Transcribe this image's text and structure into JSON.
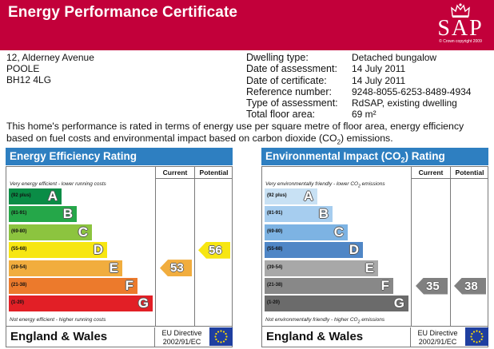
{
  "header": {
    "title": "Energy Performance Certificate",
    "logo_text": "SAP",
    "logo_copyright": "© Crown copyright 2009"
  },
  "address": {
    "line1": "12, Alderney Avenue",
    "line2": "POOLE",
    "line3": "BH12 4LG"
  },
  "details": [
    {
      "label": "Dwelling type:",
      "value": "Detached bungalow"
    },
    {
      "label": "Date of assessment:",
      "value": "14 July 2011"
    },
    {
      "label": "Date of certificate:",
      "value": "14 July 2011"
    },
    {
      "label": "Reference number:",
      "value": "9248-8055-6253-8489-4934"
    },
    {
      "label": "Type of assessment:",
      "value": "RdSAP, existing dwelling"
    },
    {
      "label": "Total floor area:",
      "value": "69 m²"
    }
  ],
  "intro": {
    "text_before": "This home's performance is rated in terms of energy use per square metre of floor area, energy efficiency based on fuel costs and environmental impact based on carbon dioxide (CO",
    "sub": "2",
    "text_after": ") emissions."
  },
  "columns": {
    "current": "Current",
    "potential": "Potential"
  },
  "footer": {
    "region": "England & Wales",
    "directive_line1": "EU Directive",
    "directive_line2": "2002/91/EC"
  },
  "energy": {
    "title": "Energy Efficiency Rating",
    "note_top": "Very energy efficient - lower running costs",
    "note_bottom": "Not energy efficient - higher running costs",
    "bands": [
      {
        "range": "(92 plus)",
        "letter": "A",
        "color": "#0a8c46"
      },
      {
        "range": "(81-91)",
        "letter": "B",
        "color": "#25a749"
      },
      {
        "range": "(69-80)",
        "letter": "C",
        "color": "#8cc43f"
      },
      {
        "range": "(55-68)",
        "letter": "D",
        "color": "#f7e612"
      },
      {
        "range": "(39-54)",
        "letter": "E",
        "color": "#f1ad3e"
      },
      {
        "range": "(21-38)",
        "letter": "F",
        "color": "#ec7a2c"
      },
      {
        "range": "(1-20)",
        "letter": "G",
        "color": "#e21f26"
      }
    ],
    "current": {
      "value": "53",
      "color": "#f1ad3e"
    },
    "potential": {
      "value": "56",
      "color": "#f7e612"
    }
  },
  "environment": {
    "title_before": "Environmental Impact (CO",
    "title_sub": "2",
    "title_after": ") Rating",
    "note_top_before": "Very environmentally friendly - lower CO",
    "note_top_sub": "2",
    "note_top_after": " emissions",
    "note_bottom_before": "Not environmentally friendly - higher CO",
    "note_bottom_sub": "2",
    "note_bottom_after": " emissions",
    "bands": [
      {
        "range": "(92 plus)",
        "letter": "A",
        "color": "#c8e1f4"
      },
      {
        "range": "(81-91)",
        "letter": "B",
        "color": "#a6cdef"
      },
      {
        "range": "(69-80)",
        "letter": "C",
        "color": "#7db3e3"
      },
      {
        "range": "(55-68)",
        "letter": "D",
        "color": "#4f86c6"
      },
      {
        "range": "(39-54)",
        "letter": "E",
        "color": "#a8a8a8"
      },
      {
        "range": "(21-38)",
        "letter": "F",
        "color": "#888888"
      },
      {
        "range": "(1-20)",
        "letter": "G",
        "color": "#6b6b6b"
      }
    ],
    "current": {
      "value": "35",
      "color": "#808080"
    },
    "potential": {
      "value": "38",
      "color": "#808080"
    }
  }
}
